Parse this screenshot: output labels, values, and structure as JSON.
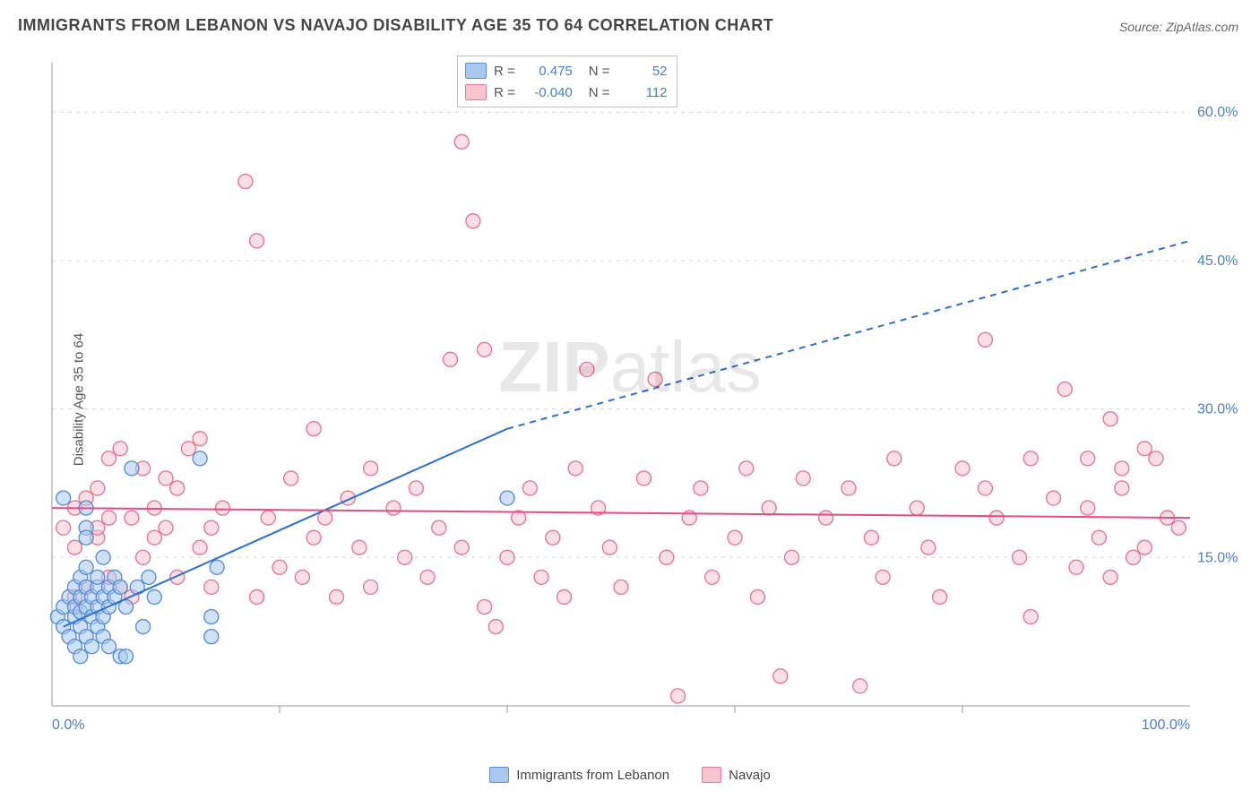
{
  "title": "IMMIGRANTS FROM LEBANON VS NAVAJO DISABILITY AGE 35 TO 64 CORRELATION CHART",
  "source_label": "Source: ZipAtlas.com",
  "ylabel": "Disability Age 35 to 64",
  "watermark_bold": "ZIP",
  "watermark_rest": "atlas",
  "chart": {
    "type": "scatter",
    "background_color": "#ffffff",
    "grid_color": "#d8d8d8",
    "axis_line_color": "#999999",
    "axis_label_color": "#4a7ecc",
    "xlim": [
      0,
      100
    ],
    "ylim": [
      0,
      65
    ],
    "yticks": [
      15,
      30,
      45,
      60
    ],
    "ytick_labels": [
      "15.0%",
      "30.0%",
      "45.0%",
      "60.0%"
    ],
    "xticks": [
      0,
      100
    ],
    "xtick_labels": [
      "0.0%",
      "100.0%"
    ],
    "xtick_minor": [
      20,
      40,
      60,
      80
    ],
    "marker_radius": 8,
    "marker_stroke_width": 1.4,
    "series": [
      {
        "name": "Immigrants from Lebanon",
        "fill_color": "#a8c8ee",
        "stroke_color": "#5b8fd6",
        "fill_opacity": 0.55,
        "R": "0.475",
        "N": "52",
        "trend": {
          "x1": 1,
          "y1": 8,
          "x2": 40,
          "y2": 28,
          "x2_dash": 100,
          "y2_dash": 47,
          "color": "#2b6fd1",
          "width": 2
        },
        "points": [
          [
            0.5,
            9
          ],
          [
            1,
            10
          ],
          [
            1,
            8
          ],
          [
            1.5,
            11
          ],
          [
            1.5,
            7
          ],
          [
            2,
            9
          ],
          [
            2,
            10
          ],
          [
            2,
            12
          ],
          [
            2,
            6
          ],
          [
            2.5,
            8
          ],
          [
            2.5,
            9.5
          ],
          [
            2.5,
            11
          ],
          [
            2.5,
            13
          ],
          [
            2.5,
            5
          ],
          [
            3,
            10
          ],
          [
            3,
            12
          ],
          [
            3,
            7
          ],
          [
            3,
            14
          ],
          [
            3,
            18
          ],
          [
            3,
            20
          ],
          [
            3.5,
            9
          ],
          [
            3.5,
            11
          ],
          [
            3.5,
            6
          ],
          [
            4,
            12
          ],
          [
            4,
            8
          ],
          [
            4,
            10
          ],
          [
            4,
            13
          ],
          [
            4.5,
            9
          ],
          [
            4.5,
            11
          ],
          [
            4.5,
            15
          ],
          [
            4.5,
            7
          ],
          [
            5,
            10
          ],
          [
            5,
            12
          ],
          [
            5,
            6
          ],
          [
            5.5,
            11
          ],
          [
            5.5,
            13
          ],
          [
            6,
            5
          ],
          [
            6,
            12
          ],
          [
            6.5,
            10
          ],
          [
            7,
            24
          ],
          [
            7.5,
            12
          ],
          [
            8,
            8
          ],
          [
            8.5,
            13
          ],
          [
            9,
            11
          ],
          [
            13,
            25
          ],
          [
            14,
            7
          ],
          [
            14,
            9
          ],
          [
            14.5,
            14
          ],
          [
            6.5,
            5
          ],
          [
            1,
            21
          ],
          [
            3,
            17
          ],
          [
            40,
            21
          ]
        ]
      },
      {
        "name": "Navajo",
        "fill_color": "#f6c5d1",
        "stroke_color": "#e77895",
        "fill_opacity": 0.55,
        "R": "-0.040",
        "N": "112",
        "trend": {
          "x1": 0,
          "y1": 20,
          "x2": 100,
          "y2": 19,
          "color": "#e64b82",
          "width": 2
        },
        "points": [
          [
            1,
            18
          ],
          [
            2,
            11
          ],
          [
            2,
            20
          ],
          [
            2,
            16
          ],
          [
            3,
            12
          ],
          [
            3,
            21
          ],
          [
            4,
            17
          ],
          [
            4,
            22
          ],
          [
            4,
            18
          ],
          [
            5,
            13
          ],
          [
            5,
            19
          ],
          [
            5,
            25
          ],
          [
            6,
            12
          ],
          [
            6,
            26
          ],
          [
            7,
            19
          ],
          [
            7,
            11
          ],
          [
            8,
            24
          ],
          [
            8,
            15
          ],
          [
            9,
            20
          ],
          [
            9,
            17
          ],
          [
            10,
            18
          ],
          [
            10,
            23
          ],
          [
            11,
            13
          ],
          [
            11,
            22
          ],
          [
            12,
            26
          ],
          [
            13,
            16
          ],
          [
            13,
            27
          ],
          [
            14,
            12
          ],
          [
            14,
            18
          ],
          [
            15,
            20
          ],
          [
            17,
            53
          ],
          [
            18,
            47
          ],
          [
            18,
            11
          ],
          [
            19,
            19
          ],
          [
            20,
            14
          ],
          [
            21,
            23
          ],
          [
            22,
            13
          ],
          [
            23,
            17
          ],
          [
            23,
            28
          ],
          [
            24,
            19
          ],
          [
            25,
            11
          ],
          [
            26,
            21
          ],
          [
            27,
            16
          ],
          [
            28,
            12
          ],
          [
            28,
            24
          ],
          [
            30,
            20
          ],
          [
            31,
            15
          ],
          [
            32,
            22
          ],
          [
            33,
            13
          ],
          [
            34,
            18
          ],
          [
            35,
            35
          ],
          [
            36,
            57
          ],
          [
            37,
            49
          ],
          [
            36,
            16
          ],
          [
            38,
            10
          ],
          [
            38,
            36
          ],
          [
            39,
            8
          ],
          [
            40,
            15
          ],
          [
            41,
            19
          ],
          [
            42,
            22
          ],
          [
            43,
            13
          ],
          [
            44,
            17
          ],
          [
            45,
            11
          ],
          [
            46,
            24
          ],
          [
            47,
            34
          ],
          [
            48,
            20
          ],
          [
            49,
            16
          ],
          [
            50,
            12
          ],
          [
            52,
            23
          ],
          [
            53,
            33
          ],
          [
            54,
            15
          ],
          [
            55,
            1
          ],
          [
            56,
            19
          ],
          [
            57,
            22
          ],
          [
            58,
            13
          ],
          [
            60,
            17
          ],
          [
            61,
            24
          ],
          [
            62,
            11
          ],
          [
            63,
            20
          ],
          [
            64,
            3
          ],
          [
            65,
            15
          ],
          [
            66,
            23
          ],
          [
            68,
            19
          ],
          [
            70,
            22
          ],
          [
            71,
            2
          ],
          [
            72,
            17
          ],
          [
            73,
            13
          ],
          [
            74,
            25
          ],
          [
            76,
            20
          ],
          [
            77,
            16
          ],
          [
            78,
            11
          ],
          [
            80,
            24
          ],
          [
            82,
            22
          ],
          [
            82,
            37
          ],
          [
            83,
            19
          ],
          [
            85,
            15
          ],
          [
            86,
            25
          ],
          [
            86,
            9
          ],
          [
            88,
            21
          ],
          [
            89,
            32
          ],
          [
            90,
            14
          ],
          [
            91,
            25
          ],
          [
            91,
            20
          ],
          [
            92,
            17
          ],
          [
            93,
            29
          ],
          [
            93,
            13
          ],
          [
            94,
            24
          ],
          [
            94,
            22
          ],
          [
            95,
            15
          ],
          [
            96,
            26
          ],
          [
            96,
            16
          ],
          [
            97,
            25
          ],
          [
            98,
            19
          ],
          [
            99,
            18
          ]
        ]
      }
    ]
  },
  "stats_legend": {
    "R_label": "R  =",
    "N_label": "N  =",
    "value_color": "#4a7ecc"
  },
  "bottom_legend": {
    "items": [
      {
        "label": "Immigrants from Lebanon",
        "fill": "#a8c8ee",
        "stroke": "#5b8fd6"
      },
      {
        "label": "Navajo",
        "fill": "#f6c5d1",
        "stroke": "#e77895"
      }
    ]
  }
}
